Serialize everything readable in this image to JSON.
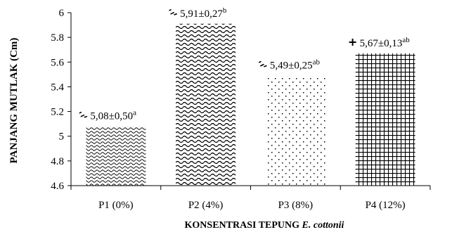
{
  "chart_data": {
    "type": "bar",
    "xlabel_main": "KONSENTRASI TEPUNG ",
    "xlabel_species": "E. cottonii",
    "ylabel": "PANJANG MUTLAK (Cm)",
    "ylim": [
      4.6,
      6
    ],
    "ytick_labels": [
      "4.6",
      "4.8",
      "5",
      "5.2",
      "5.4",
      "5.6",
      "5.8",
      "6"
    ],
    "ytick_values": [
      4.6,
      4.8,
      5.0,
      5.2,
      5.4,
      5.6,
      5.8,
      6.0
    ],
    "categories": [
      "P1 (0%)",
      "P2 (4%)",
      "P3 (8%)",
      "P4 (12%)"
    ],
    "values": [
      5.08,
      5.91,
      5.49,
      5.67
    ],
    "errors": [
      0.5,
      0.27,
      0.25,
      0.13
    ],
    "data_labels": [
      {
        "main": "5,08±0,50",
        "sup": "a"
      },
      {
        "main": "5,91±0,27",
        "sup": "b"
      },
      {
        "main": "5,49±0,25",
        "sup": "ab"
      },
      {
        "main": "5,67±0,13",
        "sup": "ab"
      }
    ],
    "patterns": [
      "small-waves",
      "large-waves",
      "dots",
      "grid"
    ],
    "grid": false,
    "legend": "none"
  }
}
